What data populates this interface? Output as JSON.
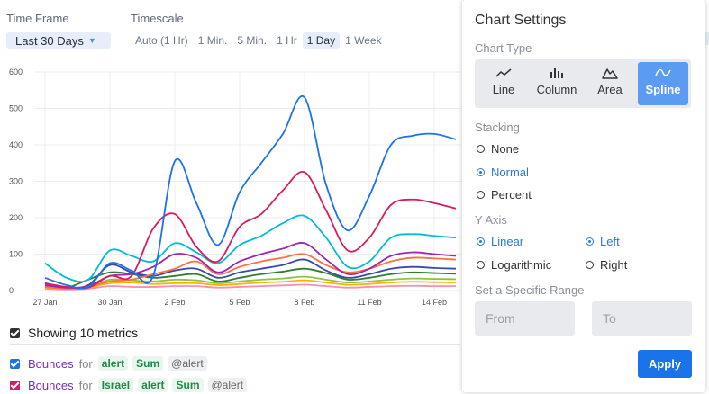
{
  "toolbar": {
    "time_frame_label": "Time Frame",
    "time_frame_value": "Last 30 Days",
    "timescale_label": "Timescale",
    "timescale_options": [
      "Auto (1 Hr)",
      "1 Min.",
      "5 Min.",
      "1 Hr",
      "1 Day",
      "1 Week"
    ],
    "timescale_selected": "1 Day"
  },
  "metrics": {
    "header": "Showing 10 metrics",
    "rows": [
      {
        "checkbox_color": "#1a73e8",
        "name": "Bounces",
        "for": "for",
        "tags": [
          "alert",
          "Sum"
        ],
        "grey_tag": "@alert"
      },
      {
        "checkbox_color": "#d81b60",
        "name": "Bounces",
        "for": "for",
        "tags": [
          "Israel",
          "alert",
          "Sum"
        ],
        "grey_tag": "@alert"
      }
    ]
  },
  "settings": {
    "title": "Chart Settings",
    "chart_type_label": "Chart Type",
    "chart_types": [
      {
        "label": "Line",
        "icon": "line-chart-icon"
      },
      {
        "label": "Column",
        "icon": "column-chart-icon"
      },
      {
        "label": "Area",
        "icon": "area-chart-icon"
      },
      {
        "label": "Spline",
        "icon": "spline-chart-icon"
      }
    ],
    "chart_type_selected": "Spline",
    "stacking_label": "Stacking",
    "stacking_options": [
      "None",
      "Normal",
      "Percent"
    ],
    "stacking_selected": "Normal",
    "y_axis_label": "Y Axis",
    "scale_options": [
      "Linear",
      "Logarithmic"
    ],
    "scale_selected": "Linear",
    "side_options": [
      "Left",
      "Right"
    ],
    "side_selected": "Left",
    "range_label": "Set a Specific Range",
    "from_placeholder": "From",
    "to_placeholder": "To",
    "apply_label": "Apply",
    "accent_color": "#1a73e8"
  },
  "chart_data": {
    "type": "line",
    "x": [
      "27 Jan",
      "28 Jan",
      "29 Jan",
      "30 Jan",
      "31 Jan",
      "1 Feb",
      "2 Feb",
      "3 Feb",
      "4 Feb",
      "5 Feb",
      "6 Feb",
      "7 Feb",
      "8 Feb",
      "9 Feb",
      "10 Feb",
      "11 Feb",
      "12 Feb",
      "13 Feb",
      "14 Feb",
      "15 Feb"
    ],
    "x_tick_labels": [
      "27 Jan",
      "30 Jan",
      "2 Feb",
      "5 Feb",
      "8 Feb",
      "11 Feb",
      "14 Feb"
    ],
    "ylim": [
      0,
      600
    ],
    "y_ticks": [
      0,
      100,
      200,
      300,
      400,
      500,
      600
    ],
    "grid": true,
    "series": [
      {
        "color": "#1a73e8",
        "values": [
          35,
          15,
          10,
          75,
          55,
          40,
          355,
          240,
          125,
          270,
          350,
          430,
          530,
          290,
          165,
          260,
          400,
          425,
          430,
          415
        ]
      },
      {
        "color": "#d81b60",
        "values": [
          20,
          10,
          8,
          40,
          40,
          170,
          210,
          120,
          80,
          175,
          210,
          275,
          325,
          220,
          110,
          145,
          235,
          250,
          240,
          225
        ]
      },
      {
        "color": "#00bcd4",
        "values": [
          75,
          35,
          30,
          110,
          95,
          80,
          130,
          105,
          75,
          125,
          150,
          185,
          205,
          145,
          65,
          80,
          145,
          155,
          150,
          145
        ]
      },
      {
        "color": "#9c27b0",
        "values": [
          15,
          8,
          12,
          40,
          45,
          65,
          100,
          90,
          50,
          80,
          100,
          115,
          130,
          85,
          45,
          60,
          95,
          105,
          100,
          95
        ]
      },
      {
        "color": "#ff7043",
        "values": [
          10,
          5,
          10,
          25,
          30,
          45,
          60,
          80,
          45,
          65,
          80,
          90,
          100,
          70,
          50,
          60,
          80,
          90,
          88,
          85
        ]
      },
      {
        "color": "#3949ab",
        "values": [
          20,
          8,
          15,
          70,
          50,
          40,
          55,
          60,
          35,
          50,
          60,
          70,
          85,
          55,
          35,
          45,
          60,
          65,
          62,
          60
        ]
      },
      {
        "color": "#2e7d32",
        "values": [
          10,
          8,
          30,
          50,
          45,
          35,
          40,
          45,
          25,
          35,
          45,
          52,
          60,
          48,
          30,
          35,
          45,
          50,
          48,
          46
        ]
      },
      {
        "color": "#8bc34a",
        "values": [
          12,
          6,
          10,
          30,
          28,
          25,
          30,
          28,
          20,
          25,
          30,
          33,
          38,
          30,
          22,
          25,
          30,
          33,
          32,
          31
        ]
      },
      {
        "color": "#ffb300",
        "values": [
          8,
          5,
          8,
          20,
          22,
          18,
          20,
          20,
          15,
          18,
          22,
          24,
          28,
          22,
          16,
          18,
          22,
          24,
          23,
          22
        ]
      },
      {
        "color": "#f48fb1",
        "values": [
          5,
          3,
          5,
          12,
          10,
          10,
          12,
          12,
          8,
          10,
          12,
          14,
          16,
          12,
          8,
          10,
          12,
          13,
          12,
          12
        ]
      }
    ]
  }
}
